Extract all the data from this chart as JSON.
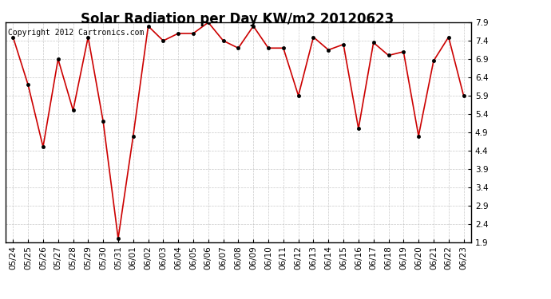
{
  "title": "Solar Radiation per Day KW/m2 20120623",
  "copyright": "Copyright 2012 Cartronics.com",
  "x_labels": [
    "05/24",
    "05/25",
    "05/26",
    "05/27",
    "05/28",
    "05/29",
    "05/30",
    "05/31",
    "06/01",
    "06/02",
    "06/03",
    "06/04",
    "06/05",
    "06/06",
    "06/07",
    "06/08",
    "06/09",
    "06/10",
    "06/11",
    "06/12",
    "06/13",
    "06/14",
    "06/15",
    "06/16",
    "06/17",
    "06/18",
    "06/19",
    "06/20",
    "06/21",
    "06/22",
    "06/23"
  ],
  "y_values": [
    7.5,
    6.2,
    4.5,
    6.9,
    5.5,
    7.5,
    5.2,
    2.0,
    4.8,
    7.8,
    7.4,
    7.6,
    7.6,
    7.9,
    7.4,
    7.2,
    7.8,
    7.2,
    7.2,
    5.9,
    7.5,
    7.15,
    7.3,
    5.0,
    7.35,
    7.0,
    7.1,
    4.8,
    6.85,
    7.5,
    5.9
  ],
  "line_color": "#cc0000",
  "marker_color": "#000000",
  "bg_color": "#ffffff",
  "plot_bg_color": "#ffffff",
  "grid_color": "#bbbbbb",
  "y_min": 1.9,
  "y_max": 7.9,
  "y_ticks": [
    1.9,
    2.4,
    2.9,
    3.4,
    3.9,
    4.4,
    4.9,
    5.4,
    5.9,
    6.4,
    6.9,
    7.4,
    7.9
  ],
  "title_fontsize": 12,
  "tick_fontsize": 7.5,
  "copyright_fontsize": 7
}
